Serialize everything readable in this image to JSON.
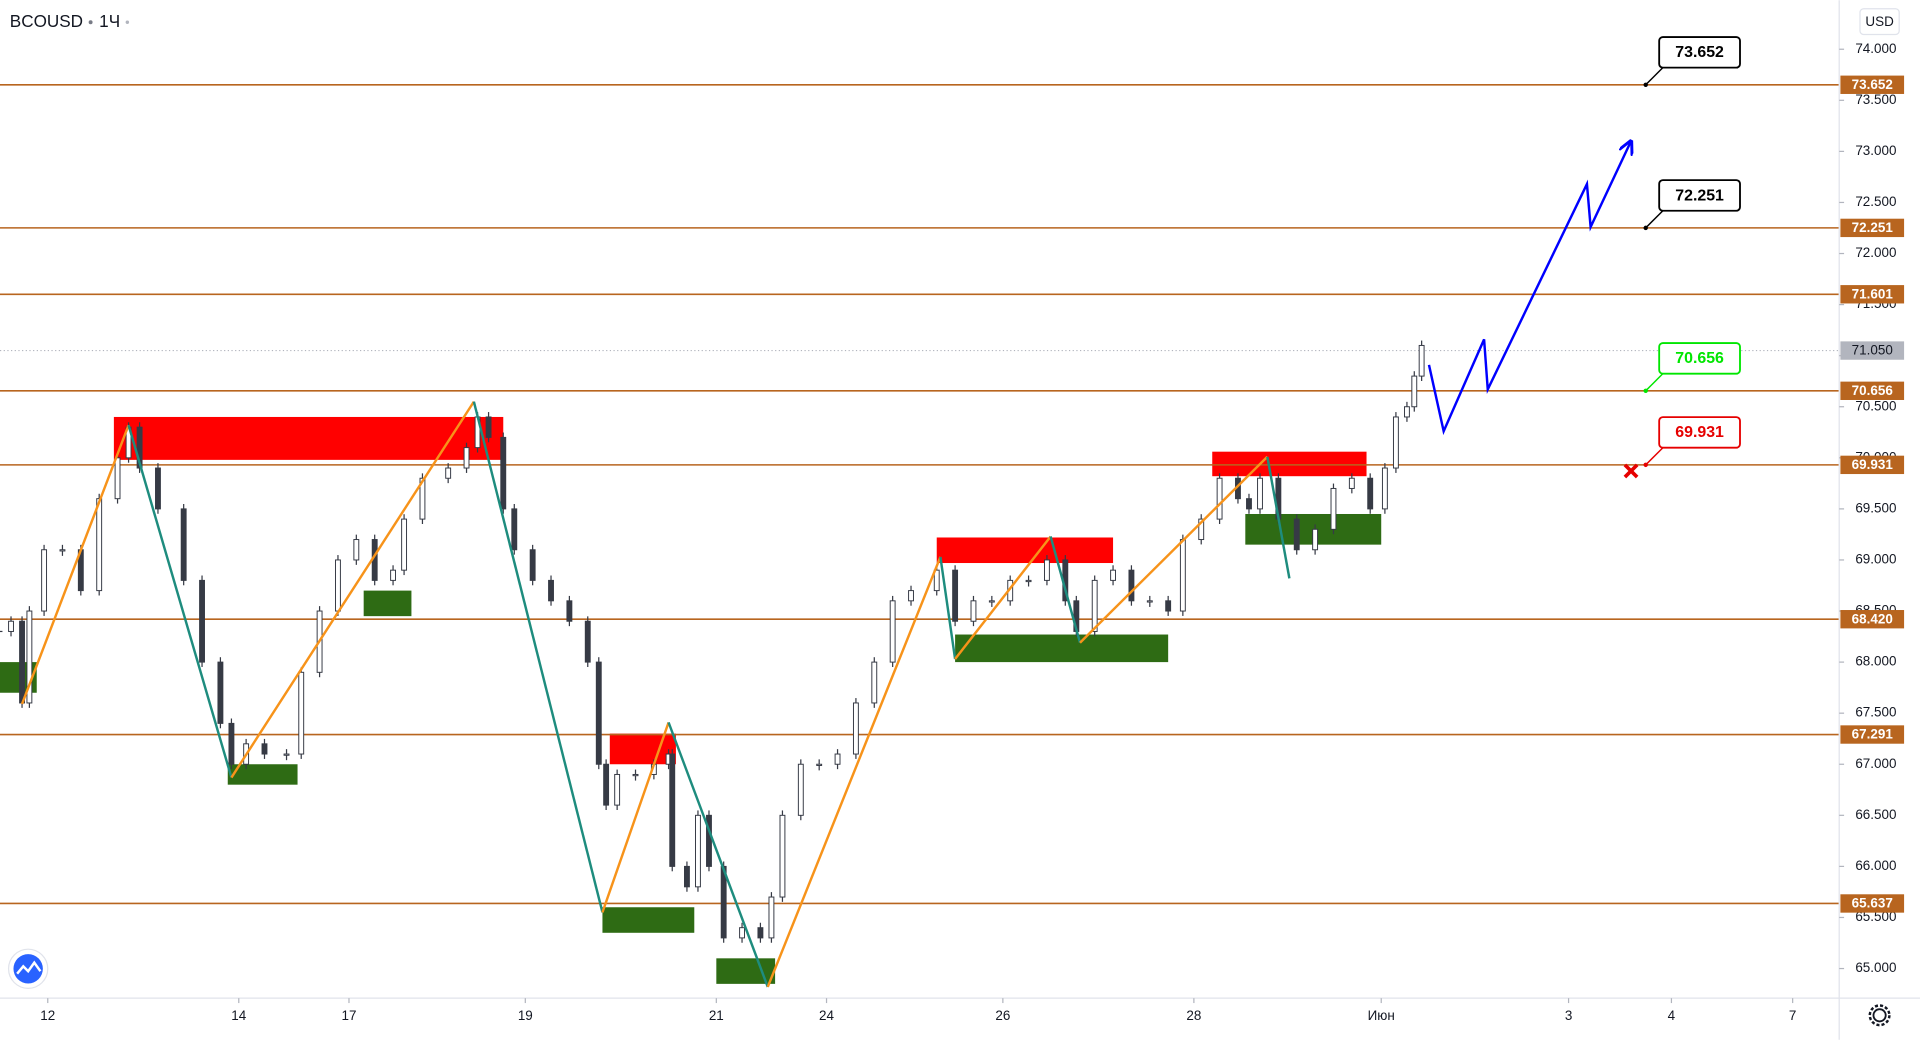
{
  "chart_data": {
    "type": "candlestick",
    "symbol": "BCOUSD",
    "interval": "1Ч",
    "currency": "USD",
    "xlim": [
      0,
      500
    ],
    "ylim": [
      64.71,
      74.48
    ],
    "xticks": [
      {
        "value": 13,
        "label": "12"
      },
      {
        "value": 65,
        "label": "14"
      },
      {
        "value": 95,
        "label": "17"
      },
      {
        "value": 143,
        "label": "19"
      },
      {
        "value": 195,
        "label": "21"
      },
      {
        "value": 225,
        "label": "24"
      },
      {
        "value": 273,
        "label": "26"
      },
      {
        "value": 325,
        "label": "28"
      },
      {
        "value": 376,
        "label": "Июн"
      },
      {
        "value": 427,
        "label": "3"
      },
      {
        "value": 455,
        "label": "4"
      },
      {
        "value": 488,
        "label": "7"
      }
    ],
    "yticks": [
      {
        "value": 65,
        "label": "65.000"
      },
      {
        "value": 65.5,
        "label": "65.500"
      },
      {
        "value": 66,
        "label": "66.000"
      },
      {
        "value": 66.5,
        "label": "66.500"
      },
      {
        "value": 67,
        "label": "67.000"
      },
      {
        "value": 67.5,
        "label": "67.500"
      },
      {
        "value": 68,
        "label": "68.000"
      },
      {
        "value": 68.5,
        "label": "68.500"
      },
      {
        "value": 69,
        "label": "69.000"
      },
      {
        "value": 69.5,
        "label": "69.500"
      },
      {
        "value": 70,
        "label": "70.000"
      },
      {
        "value": 70.5,
        "label": "70.500"
      },
      {
        "value": 71,
        "label": "71.000"
      },
      {
        "value": 71.5,
        "label": "71.500"
      },
      {
        "value": 72,
        "label": "72.000"
      },
      {
        "value": 72.5,
        "label": "72.500"
      },
      {
        "value": 73,
        "label": "73.000"
      },
      {
        "value": 73.5,
        "label": "73.500"
      },
      {
        "value": 74,
        "label": "74.000"
      }
    ],
    "price": {
      "x": [
        0,
        3,
        6,
        8,
        12,
        17,
        22,
        27,
        32,
        35,
        38,
        43,
        50,
        55,
        60,
        63,
        67,
        72,
        78,
        82,
        87,
        92,
        97,
        102,
        107,
        110,
        115,
        122,
        127,
        130,
        133,
        137,
        140,
        145,
        150,
        155,
        160,
        163,
        165,
        168,
        173,
        178,
        182,
        183,
        187,
        190,
        193,
        197,
        202,
        207,
        210,
        213,
        218,
        223,
        228,
        233,
        238,
        243,
        248,
        255,
        260,
        265,
        270,
        275,
        280,
        285,
        290,
        293,
        298,
        303,
        308,
        313,
        318,
        322,
        327,
        332,
        337,
        340,
        343,
        348,
        353,
        358,
        363,
        368,
        373,
        377,
        380,
        383,
        385,
        387
      ],
      "values": [
        68.3,
        68.4,
        67.6,
        68.5,
        69.1,
        69.1,
        68.7,
        69.6,
        70.0,
        70.3,
        69.9,
        69.5,
        68.8,
        68.0,
        67.4,
        67.0,
        67.2,
        67.1,
        67.1,
        67.9,
        68.5,
        69.0,
        69.2,
        68.8,
        68.9,
        69.4,
        69.8,
        69.9,
        70.1,
        70.4,
        70.2,
        69.5,
        69.1,
        68.8,
        68.6,
        68.4,
        68.0,
        67.0,
        66.6,
        66.9,
        66.9,
        67.0,
        67.1,
        66.0,
        65.8,
        66.5,
        66.0,
        65.3,
        65.4,
        65.3,
        65.7,
        66.5,
        67.0,
        67.0,
        67.1,
        67.6,
        68.0,
        68.6,
        68.7,
        68.9,
        68.4,
        68.6,
        68.6,
        68.8,
        68.8,
        69.0,
        68.6,
        68.3,
        68.8,
        68.9,
        68.6,
        68.6,
        68.5,
        69.2,
        69.4,
        69.8,
        69.6,
        69.5,
        69.8,
        69.4,
        69.1,
        69.3,
        69.7,
        69.8,
        69.5,
        69.9,
        70.4,
        70.5,
        70.8,
        71.1
      ],
      "up_color": "#ffffff",
      "down_color": "#363a45",
      "border_color": "#363a45"
    },
    "last_price": {
      "value": 71.05,
      "label": "71.050",
      "color": "#b2b5be"
    },
    "levels": {
      "color": "#b8651f",
      "values": [
        73.652,
        72.251,
        71.601,
        70.656,
        69.931,
        {
          "value": 68.42,
          "label": "68.420"
        },
        67.291,
        65.637
      ]
    },
    "zones": [
      {
        "x": [
          31,
          137
        ],
        "y": [
          69.98,
          70.4
        ],
        "color": "#ff0000"
      },
      {
        "x": [
          0,
          10
        ],
        "y": [
          67.7,
          68.0
        ],
        "color": "#2e6b14"
      },
      {
        "x": [
          62,
          81
        ],
        "y": [
          66.8,
          67.0
        ],
        "color": "#2e6b14"
      },
      {
        "x": [
          99,
          112
        ],
        "y": [
          68.45,
          68.7
        ],
        "color": "#2e6b14"
      },
      {
        "x": [
          166,
          184
        ],
        "y": [
          67.0,
          67.3
        ],
        "color": "#ff0000"
      },
      {
        "x": [
          164,
          189
        ],
        "y": [
          65.35,
          65.6
        ],
        "color": "#2e6b14"
      },
      {
        "x": [
          195,
          211
        ],
        "y": [
          64.85,
          65.1
        ],
        "color": "#2e6b14"
      },
      {
        "x": [
          255,
          303
        ],
        "y": [
          68.97,
          69.22
        ],
        "color": "#ff0000"
      },
      {
        "x": [
          260,
          318
        ],
        "y": [
          68.0,
          68.27
        ],
        "color": "#2e6b14"
      },
      {
        "x": [
          330,
          372
        ],
        "y": [
          69.82,
          70.06
        ],
        "color": "#ff0000"
      },
      {
        "x": [
          339,
          376
        ],
        "y": [
          69.15,
          69.45
        ],
        "color": "#2e6b14"
      }
    ],
    "zigzag": {
      "x": [
        6,
        35,
        63,
        129,
        164,
        182,
        209,
        256,
        260,
        286,
        294,
        345,
        351
      ],
      "values": [
        67.59,
        70.32,
        66.87,
        70.55,
        65.55,
        67.41,
        64.82,
        69.03,
        68.03,
        69.23,
        68.19,
        70.01,
        68.82
      ],
      "up_color": "#f7931a",
      "down_color": "#1e8c7e"
    },
    "forecast": {
      "x": [
        389,
        393,
        404,
        405,
        432,
        433,
        444
      ],
      "values": [
        70.91,
        70.26,
        71.16,
        70.67,
        72.68,
        72.26,
        73.1
      ],
      "color": "#0000ff"
    },
    "callouts": [
      {
        "x": 448,
        "value": 73.652,
        "color": "#000000"
      },
      {
        "x": 448,
        "value": 72.251,
        "color": "#000000"
      },
      {
        "x": 448,
        "value": 70.656,
        "color": "#00e600"
      },
      {
        "x": 448,
        "value": 69.931,
        "color": "#e60000",
        "cross": true
      }
    ]
  }
}
